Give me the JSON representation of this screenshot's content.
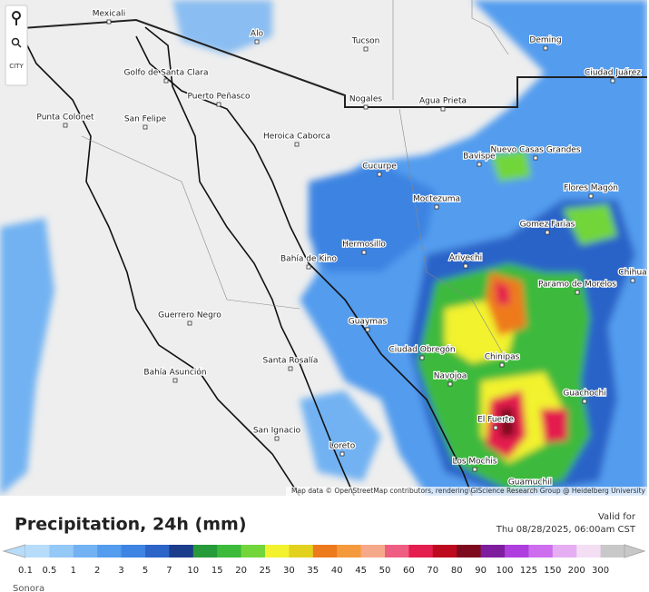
{
  "toolbar": {
    "city_label": "CITY"
  },
  "map": {
    "cities": [
      "Mexicali",
      "Alo",
      "Tucson",
      "Deming",
      "Golfo de Santa Clara",
      "Puerto Peñasco",
      "Ciudad Juárez",
      "Nogales",
      "Agua Prieta",
      "Punta Colonet",
      "San Felipe",
      "Heroica Caborca",
      "Nuevo Casas Grandes",
      "Bavispe",
      "Cucurpe",
      "Flores Magón",
      "Moctezuma",
      "Gomez Farias",
      "Hermosillo",
      "Bahía de Kino",
      "Arivechi",
      "Chihua",
      "Paramo de Morelos",
      "Guerrero Negro",
      "Guaymas",
      "Ciudad Obregón",
      "Chinipas",
      "Santa Rosalía",
      "Navojoa",
      "Bahía Asunción",
      "Guachochi",
      "El Fuerte",
      "San Ignacio",
      "Loreto",
      "Los Mochis",
      "Guamuchil"
    ],
    "attribution": "Map data © OpenStreetMap contributors, rendering GIScience Research Group @ Heidelberg University"
  },
  "legend": {
    "title": "Precipitation, 24h (mm)",
    "valid_label": "Valid for",
    "valid_time": "Thu 08/28/2025, 06:00am CST",
    "levels": [
      0.1,
      0.5,
      1,
      2,
      3,
      5,
      7,
      10,
      15,
      20,
      25,
      30,
      35,
      40,
      45,
      50,
      60,
      70,
      80,
      90,
      100,
      125,
      150,
      200,
      300
    ],
    "colors": [
      "#b6dcfa",
      "#94c8f6",
      "#72b2f2",
      "#539cee",
      "#3e84e2",
      "#2c64c8",
      "#1c3c8c",
      "#279a3a",
      "#3cba3c",
      "#72d63a",
      "#f2f22e",
      "#e2d21e",
      "#ee7a1e",
      "#f49a3c",
      "#f6a88a",
      "#ee5e82",
      "#e41e4e",
      "#be0a1e",
      "#7e0a1e",
      "#7e1e9e",
      "#ae3ede",
      "#cc6eee",
      "#e6aef2",
      "#f4def4",
      "#c8c8c8"
    ]
  },
  "region": "Sonora"
}
